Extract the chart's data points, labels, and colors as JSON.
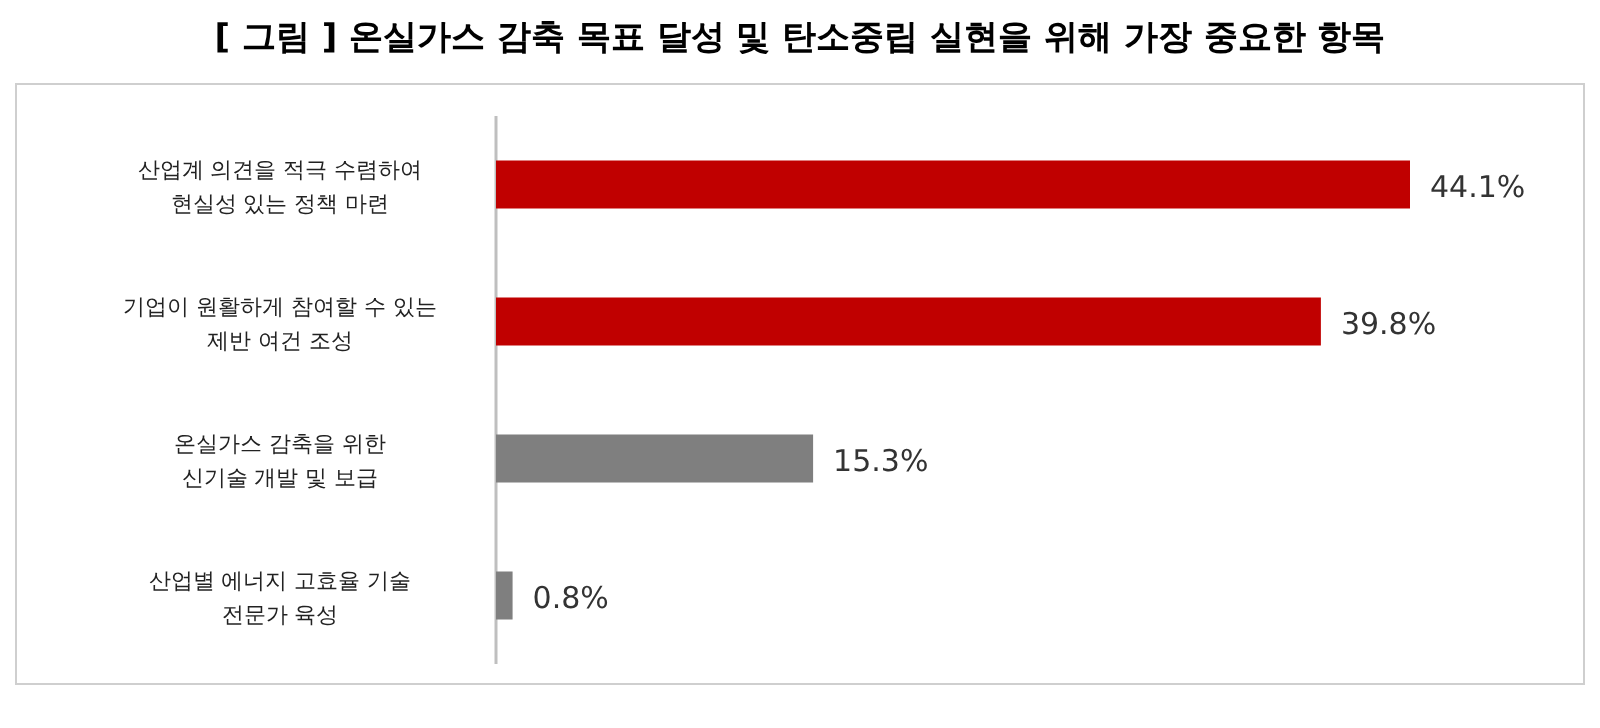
{
  "chart_data": {
    "type": "bar",
    "orientation": "horizontal",
    "title": "[ 그림 ] 온실가스 감축 목표 달성 및 탄소중립 실현을 위해 가장 중요한 항목",
    "categories": [
      "산업계 의견을 적극 수렴하여\n현실성 있는 정책 마련",
      "기업이 원활하게 참여할 수 있는\n제반 여건 조성",
      "온실가스 감축을 위한\n신기술 개발 및 보급",
      "산업별 에너지 고효율 기술\n전문가 육성"
    ],
    "values": [
      44.1,
      39.8,
      15.3,
      0.8
    ],
    "colors": [
      "#c00000",
      "#c00000",
      "#7f7f7f",
      "#7f7f7f"
    ],
    "value_labels": [
      "44.1%",
      "39.8%",
      "15.3%",
      "0.8%"
    ]
  }
}
